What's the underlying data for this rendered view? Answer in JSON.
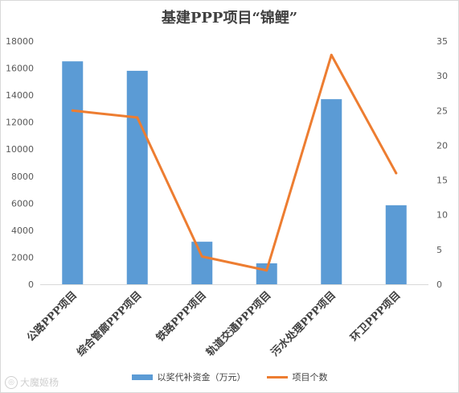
{
  "chart_data": {
    "type": "bar",
    "title": "基建PPP项目“锦鲤”",
    "categories": [
      "公路PPP项目",
      "综合管廊PPP项目",
      "铁路PPP项目",
      "轨道交通PPP项目",
      "污水处理PPP项目",
      "环卫PPP项目"
    ],
    "series": [
      {
        "name": "以奖代补资金（万元）",
        "type": "bar",
        "axis": "left",
        "color": "#5b9bd5",
        "values": [
          16500,
          15800,
          3150,
          1550,
          13700,
          5850
        ]
      },
      {
        "name": "项目个数",
        "type": "line",
        "axis": "right",
        "color": "#ed7d31",
        "values": [
          25,
          24,
          4,
          2,
          33,
          16
        ]
      }
    ],
    "y_left": {
      "min": 0,
      "max": 18000,
      "ticks": [
        "0",
        "2000",
        "4000",
        "6000",
        "8000",
        "10000",
        "12000",
        "14000",
        "16000",
        "18000"
      ]
    },
    "y_right": {
      "min": 0,
      "max": 35,
      "ticks": [
        "0",
        "5",
        "10",
        "15",
        "20",
        "25",
        "30",
        "35"
      ]
    },
    "grid": false,
    "legend_position": "bottom"
  },
  "watermark": {
    "icon": "watermark-logo-icon",
    "text": "大魔姬杨"
  }
}
